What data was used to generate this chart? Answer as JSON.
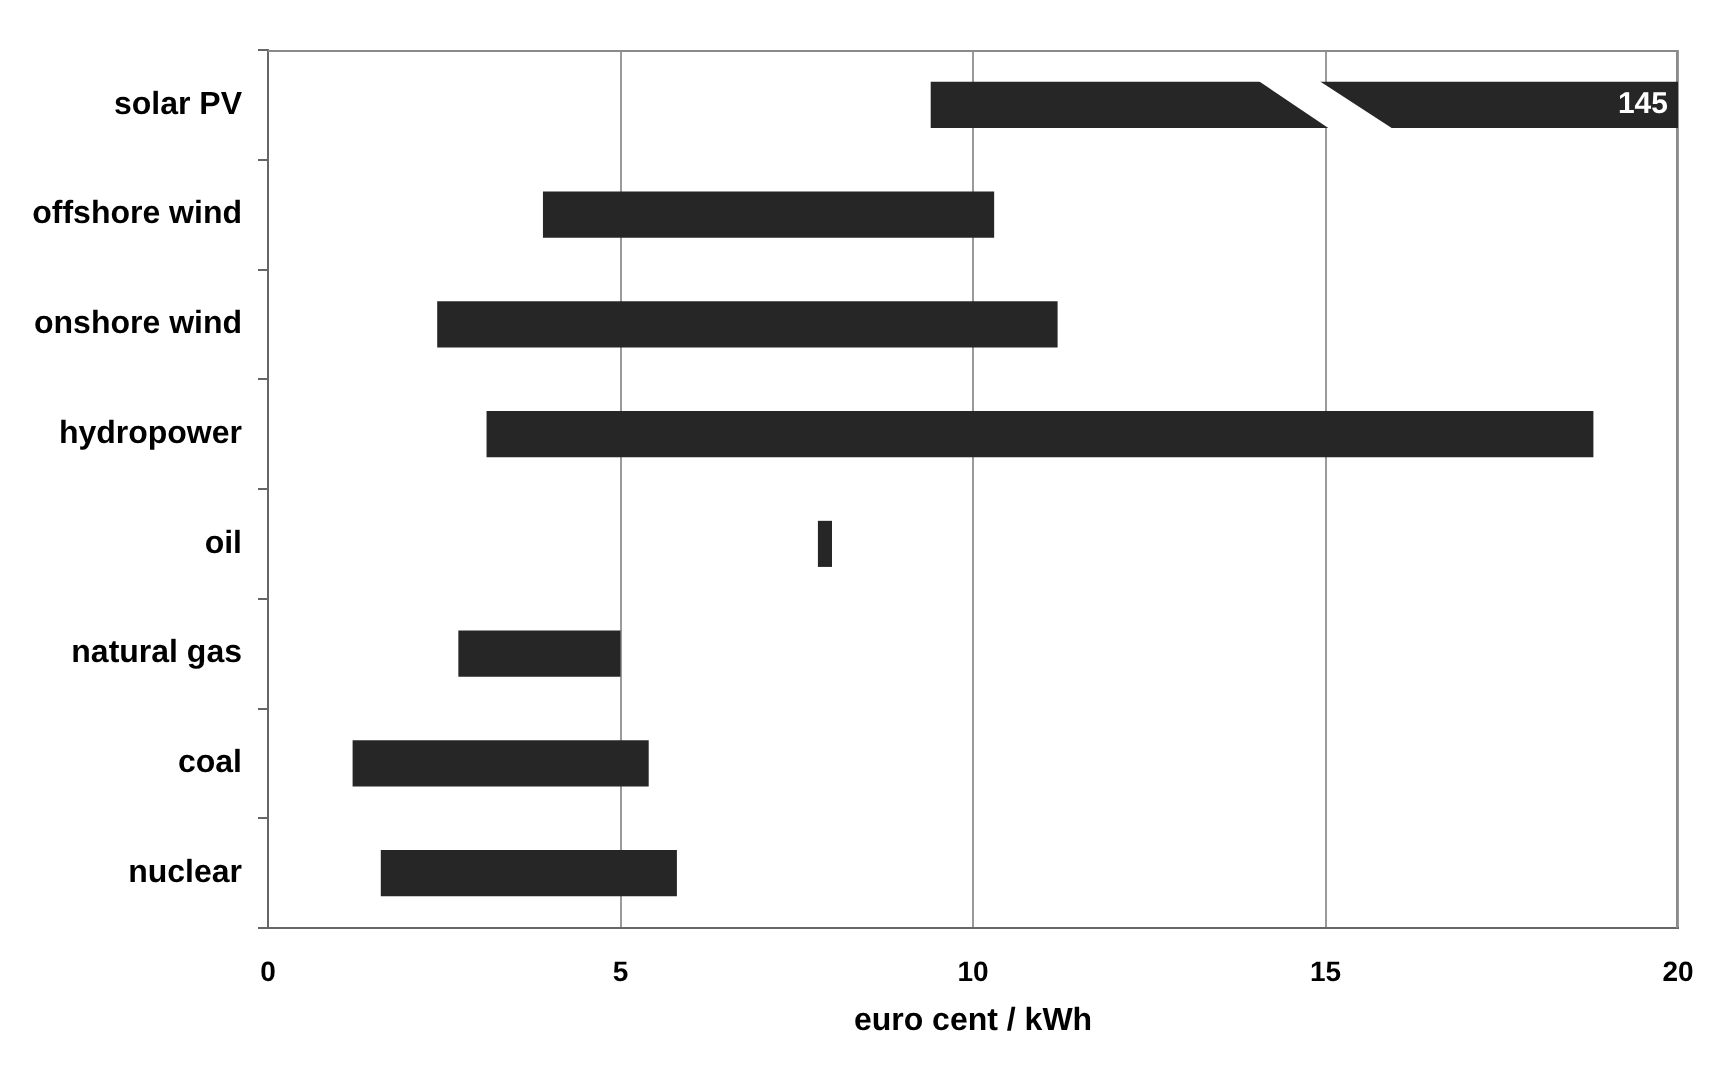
{
  "chart_data": {
    "type": "bar",
    "orientation": "horizontal",
    "categories": [
      "solar PV",
      "offshore wind",
      "onshore wind",
      "hydropower",
      "oil",
      "natural gas",
      "coal",
      "nuclear"
    ],
    "base": [
      9.4,
      3.9,
      2.4,
      3.1,
      7.8,
      2.7,
      1.2,
      1.6
    ],
    "values": [
      10.6,
      6.4,
      8.8,
      15.7,
      0.2,
      2.3,
      4.2,
      4.2
    ],
    "color": "#262626",
    "xlabel": "euro cent / kWh",
    "xlim": [
      0,
      20
    ],
    "xticks": [
      0,
      5,
      10,
      15,
      20
    ],
    "grid": "x",
    "annotations": [
      {
        "text": "145",
        "x": 20,
        "y": "solar PV"
      }
    ]
  }
}
